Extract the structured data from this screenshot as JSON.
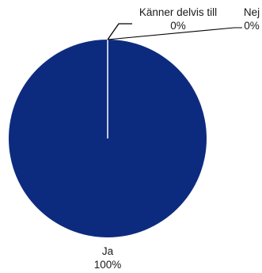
{
  "chart_data": {
    "type": "pie",
    "title": "",
    "categories": [
      "Ja",
      "Känner delvis till",
      "Nej"
    ],
    "values": [
      100,
      0,
      0
    ],
    "percent_labels": [
      "100%",
      "0%",
      "0%"
    ],
    "colors": [
      "#0d2b7e",
      "#0d2b7e",
      "#0d2b7e"
    ],
    "separator_color": "#ffffff",
    "leader_line_color": "#000000",
    "legend": "none",
    "start_angle": "12 o'clock, clockwise"
  }
}
